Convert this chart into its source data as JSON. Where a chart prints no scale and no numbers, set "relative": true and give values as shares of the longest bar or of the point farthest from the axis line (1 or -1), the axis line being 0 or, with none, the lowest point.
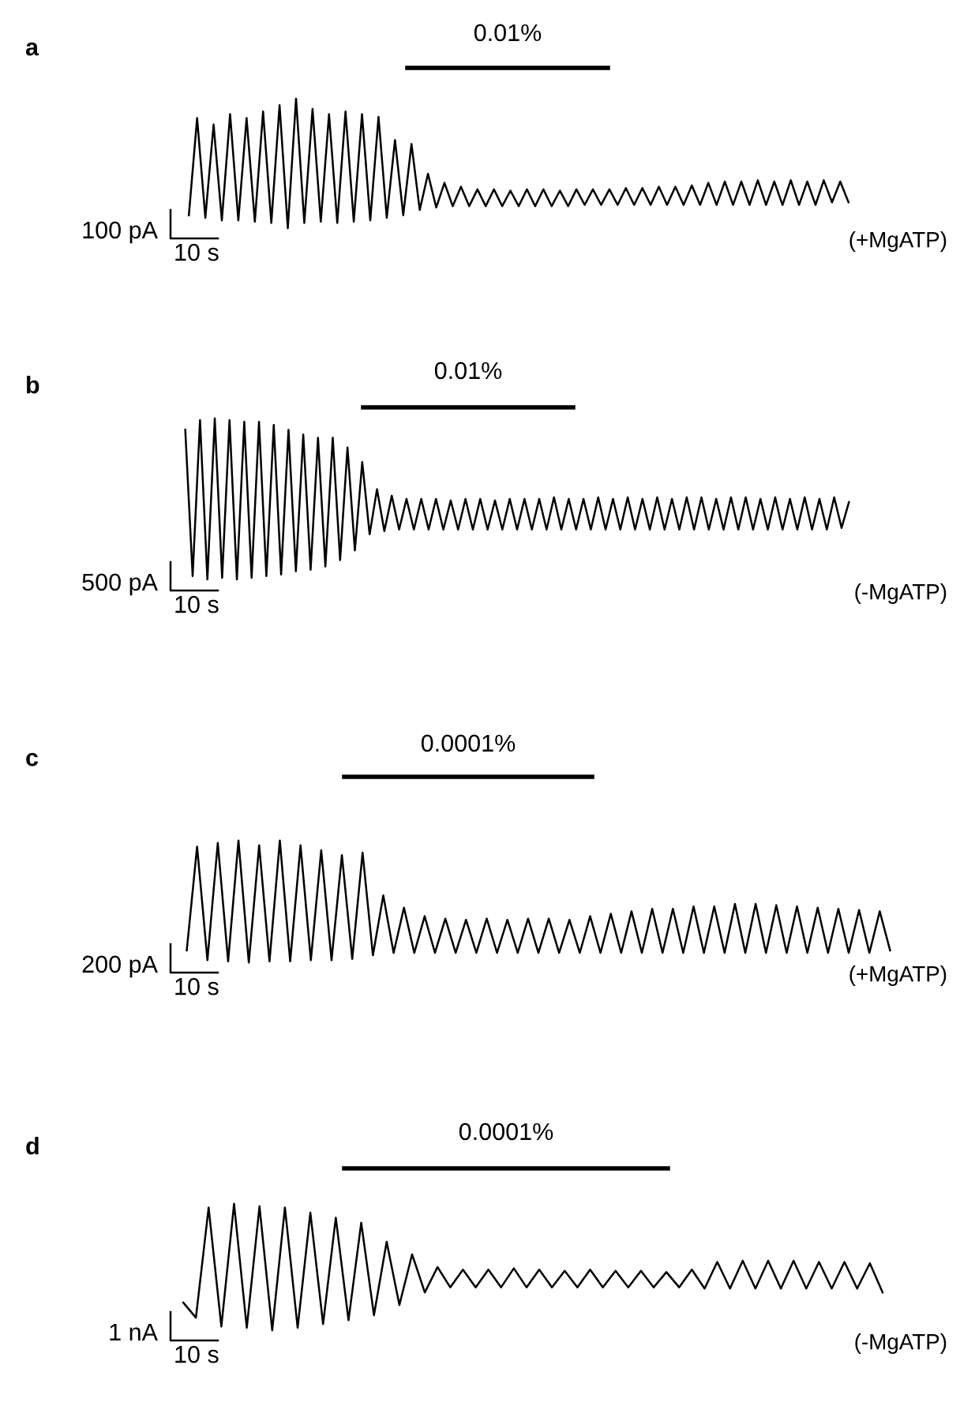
{
  "chart_data": [
    {
      "type": "line",
      "title": "a",
      "relative": true,
      "tick_labels": false,
      "categories": [
        null,
        null,
        null,
        null,
        null,
        null,
        null,
        null,
        null,
        null,
        null,
        null,
        null,
        null,
        null,
        null,
        null,
        null,
        null,
        null,
        null,
        null,
        null,
        null,
        null,
        null,
        null,
        null,
        null,
        null,
        null,
        null,
        null,
        null,
        null,
        null,
        null,
        null,
        null,
        null,
        null,
        null,
        null,
        null,
        null,
        null,
        null,
        null,
        null,
        null,
        null,
        null,
        null,
        null,
        null,
        null,
        null,
        null,
        null,
        null,
        null,
        null,
        null,
        null,
        null,
        null,
        null,
        null,
        null,
        null,
        null,
        null,
        null,
        null,
        null,
        null,
        null,
        null,
        null,
        null,
        null
      ],
      "series": [
        {
          "color": "#000000",
          "values": [
            0.1,
            0.85,
            0.08,
            0.8,
            0.06,
            0.88,
            0.06,
            0.85,
            0.05,
            0.9,
            0.04,
            0.95,
            0,
            1.0,
            0.04,
            0.92,
            0.05,
            0.88,
            0.04,
            0.9,
            0.05,
            0.88,
            0.06,
            0.86,
            0.08,
            0.68,
            0.1,
            0.65,
            0.14,
            0.42,
            0.16,
            0.35,
            0.17,
            0.32,
            0.17,
            0.3,
            0.17,
            0.3,
            0.17,
            0.29,
            0.17,
            0.3,
            0.17,
            0.3,
            0.17,
            0.29,
            0.17,
            0.3,
            0.18,
            0.3,
            0.18,
            0.3,
            0.18,
            0.31,
            0.18,
            0.31,
            0.18,
            0.32,
            0.18,
            0.32,
            0.18,
            0.33,
            0.18,
            0.35,
            0.18,
            0.36,
            0.18,
            0.36,
            0.18,
            0.37,
            0.18,
            0.36,
            0.18,
            0.37,
            0.18,
            0.36,
            0.18,
            0.37,
            0.2,
            0.36,
            0.2
          ]
        }
      ],
      "annotations": [
        "0.01%",
        "100 pA",
        "10 s",
        "(+MgATP)"
      ]
    },
    {
      "type": "line",
      "title": "b",
      "relative": true,
      "tick_labels": false,
      "categories": [
        null,
        null,
        null,
        null,
        null,
        null,
        null,
        null,
        null,
        null,
        null,
        null,
        null,
        null,
        null,
        null,
        null,
        null,
        null,
        null,
        null,
        null,
        null,
        null,
        null,
        null,
        null,
        null,
        null,
        null,
        null,
        null,
        null,
        null,
        null,
        null,
        null,
        null,
        null,
        null,
        null,
        null,
        null,
        null,
        null,
        null,
        null,
        null,
        null,
        null,
        null,
        null,
        null,
        null,
        null,
        null,
        null,
        null,
        null,
        null,
        null,
        null,
        null,
        null,
        null,
        null,
        null,
        null,
        null,
        null,
        null,
        null,
        null,
        null,
        null,
        null,
        null,
        null,
        null,
        null,
        null,
        null,
        null,
        null,
        null,
        null,
        null,
        null,
        null,
        null,
        null
      ],
      "series": [
        {
          "color": "#000000",
          "values": [
            0.93,
            0.02,
            0.99,
            0,
            1.0,
            0.01,
            0.99,
            0,
            0.98,
            0.01,
            0.98,
            0.02,
            0.96,
            0.03,
            0.93,
            0.05,
            0.9,
            0.06,
            0.88,
            0.08,
            0.88,
            0.12,
            0.82,
            0.18,
            0.73,
            0.28,
            0.56,
            0.3,
            0.52,
            0.31,
            0.5,
            0.31,
            0.5,
            0.31,
            0.5,
            0.31,
            0.49,
            0.31,
            0.5,
            0.31,
            0.5,
            0.31,
            0.49,
            0.31,
            0.5,
            0.31,
            0.5,
            0.31,
            0.5,
            0.31,
            0.51,
            0.31,
            0.5,
            0.31,
            0.5,
            0.31,
            0.51,
            0.31,
            0.5,
            0.31,
            0.51,
            0.31,
            0.5,
            0.31,
            0.51,
            0.31,
            0.5,
            0.31,
            0.51,
            0.31,
            0.51,
            0.31,
            0.5,
            0.31,
            0.51,
            0.31,
            0.51,
            0.31,
            0.5,
            0.31,
            0.51,
            0.31,
            0.5,
            0.31,
            0.51,
            0.31,
            0.5,
            0.31,
            0.51,
            0.32,
            0.48
          ]
        }
      ],
      "annotations": [
        "0.01%",
        "500 pA",
        "10 s",
        "(-MgATP)"
      ]
    },
    {
      "type": "line",
      "title": "c",
      "relative": true,
      "tick_labels": false,
      "categories": [
        null,
        null,
        null,
        null,
        null,
        null,
        null,
        null,
        null,
        null,
        null,
        null,
        null,
        null,
        null,
        null,
        null,
        null,
        null,
        null,
        null,
        null,
        null,
        null,
        null,
        null,
        null,
        null,
        null,
        null,
        null,
        null,
        null,
        null,
        null,
        null,
        null,
        null,
        null,
        null,
        null,
        null,
        null,
        null,
        null,
        null,
        null,
        null,
        null,
        null,
        null,
        null,
        null,
        null,
        null,
        null,
        null,
        null,
        null,
        null,
        null,
        null,
        null,
        null,
        null,
        null,
        null,
        null,
        null
      ],
      "series": [
        {
          "color": "#000000",
          "values": [
            0.1,
            0.95,
            0.02,
            0.98,
            0.01,
            1.0,
            0,
            0.96,
            0.01,
            1.0,
            0.01,
            0.96,
            0.02,
            0.92,
            0.02,
            0.88,
            0.03,
            0.9,
            0.06,
            0.55,
            0.08,
            0.45,
            0.08,
            0.38,
            0.08,
            0.36,
            0.08,
            0.35,
            0.08,
            0.36,
            0.08,
            0.35,
            0.08,
            0.36,
            0.08,
            0.36,
            0.08,
            0.35,
            0.08,
            0.38,
            0.08,
            0.4,
            0.08,
            0.42,
            0.08,
            0.44,
            0.08,
            0.44,
            0.08,
            0.46,
            0.08,
            0.46,
            0.08,
            0.48,
            0.08,
            0.48,
            0.08,
            0.47,
            0.08,
            0.46,
            0.08,
            0.45,
            0.08,
            0.44,
            0.08,
            0.43,
            0.08,
            0.42,
            0.1
          ]
        }
      ],
      "annotations": [
        "0.0001%",
        "200 pA",
        "10 s",
        "(+MgATP)"
      ]
    },
    {
      "type": "line",
      "title": "d",
      "relative": true,
      "tick_labels": false,
      "categories": [
        null,
        null,
        null,
        null,
        null,
        null,
        null,
        null,
        null,
        null,
        null,
        null,
        null,
        null,
        null,
        null,
        null,
        null,
        null,
        null,
        null,
        null,
        null,
        null,
        null,
        null,
        null,
        null,
        null,
        null,
        null,
        null,
        null,
        null,
        null,
        null,
        null,
        null,
        null,
        null,
        null,
        null,
        null,
        null,
        null,
        null,
        null,
        null,
        null,
        null,
        null,
        null,
        null,
        null,
        null,
        null
      ],
      "series": [
        {
          "color": "#000000",
          "values": [
            0.22,
            0.1,
            0.97,
            0.03,
            1.0,
            0.02,
            0.98,
            0,
            0.97,
            0.02,
            0.93,
            0.05,
            0.89,
            0.08,
            0.85,
            0.12,
            0.7,
            0.2,
            0.6,
            0.3,
            0.5,
            0.34,
            0.48,
            0.34,
            0.48,
            0.34,
            0.49,
            0.34,
            0.48,
            0.34,
            0.47,
            0.34,
            0.48,
            0.34,
            0.47,
            0.34,
            0.47,
            0.34,
            0.46,
            0.34,
            0.48,
            0.33,
            0.54,
            0.33,
            0.55,
            0.33,
            0.55,
            0.33,
            0.55,
            0.33,
            0.54,
            0.33,
            0.54,
            0.33,
            0.53,
            0.3
          ]
        }
      ],
      "annotations": [
        "0.0001%",
        "1 nA",
        "10 s",
        "(-MgATP)"
      ]
    }
  ]
}
